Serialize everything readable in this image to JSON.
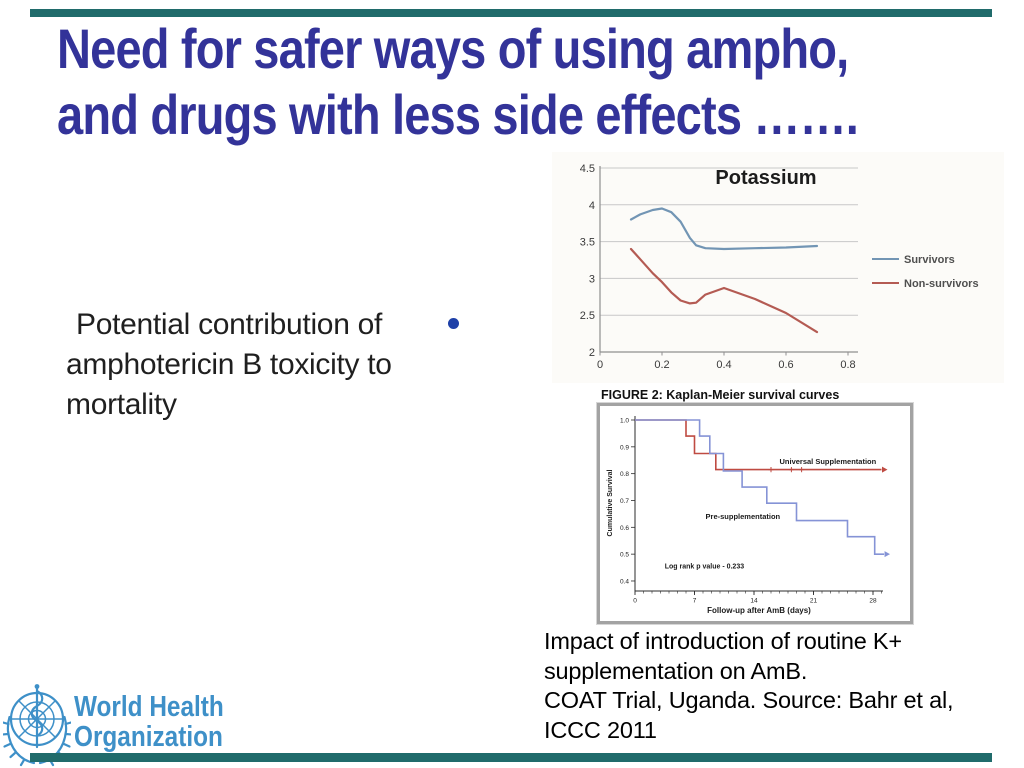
{
  "slide": {
    "title": {
      "line1": "Need for safer ways of using ampho,",
      "line2": "and drugs with less side effects …….",
      "color": "#333399"
    },
    "bullet": {
      "marker": "round-dot",
      "marker_color": "#1e40a8",
      "line1": "Potential contribution of",
      "line2": "amphotericin B toxicity to",
      "line3": "mortality"
    },
    "caption": {
      "line1": "Impact of introduction of routine K+",
      "line2": "supplementation on AmB.",
      "line3": "COAT Trial, Uganda. Source: Bahr et al,",
      "line4": "ICCC 2011"
    },
    "logo": {
      "line1": "World Health",
      "line2": "Organization",
      "color": "#3e90c8"
    },
    "accent_bar_color": "#206b6b"
  },
  "chart_data": [
    {
      "type": "line",
      "title": "Potassium",
      "xlabel": "",
      "ylabel": "",
      "x": [
        0.1,
        0.13,
        0.17,
        0.2,
        0.23,
        0.26,
        0.29,
        0.31,
        0.34,
        0.4,
        0.5,
        0.6,
        0.7
      ],
      "series": [
        {
          "name": "Survivors",
          "color": "#7295b4",
          "values": [
            3.8,
            3.87,
            3.93,
            3.95,
            3.9,
            3.77,
            3.55,
            3.45,
            3.41,
            3.4,
            3.41,
            3.42,
            3.44
          ]
        },
        {
          "name": "Non-survivors",
          "color": "#b45b53",
          "values": [
            3.4,
            3.26,
            3.07,
            2.95,
            2.81,
            2.7,
            2.66,
            2.67,
            2.78,
            2.87,
            2.72,
            2.53,
            2.27
          ]
        }
      ],
      "xlim": [
        0,
        0.8
      ],
      "ylim": [
        2,
        4.5
      ],
      "xticks": [
        0,
        0.2,
        0.4,
        0.6,
        0.8
      ],
      "yticks": [
        4.5,
        4,
        3.5,
        3,
        2.5,
        2
      ],
      "grid": true,
      "legend_position": "right"
    },
    {
      "type": "line",
      "subtype": "kaplan-meier-step",
      "title": "FIGURE 2: Kaplan-Meier survival curves",
      "xlabel": "Follow-up after AmB (days)",
      "ylabel": "Cumulative Survival",
      "xlim": [
        0,
        30
      ],
      "ylim": [
        0.38,
        1.02
      ],
      "xticks": [
        0,
        7,
        14,
        21,
        28
      ],
      "yticks": [
        1.0,
        0.9,
        0.8,
        0.7,
        0.6,
        0.5,
        0.4
      ],
      "series": [
        {
          "name": "Universal Supplementation",
          "color": "#bf4b42",
          "points": [
            [
              0,
              1.0
            ],
            [
              6,
              1.0
            ],
            [
              6,
              0.94
            ],
            [
              7,
              0.94
            ],
            [
              7,
              0.875
            ],
            [
              9.5,
              0.875
            ],
            [
              9.5,
              0.815
            ],
            [
              29,
              0.815
            ]
          ],
          "censor_marks": [
            [
              16,
              0.815
            ],
            [
              18.4,
              0.815
            ],
            [
              19.6,
              0.815
            ]
          ],
          "arrow_end": true
        },
        {
          "name": "Pre-supplementation",
          "color": "#8593d6",
          "points": [
            [
              0,
              1.0
            ],
            [
              7.6,
              1.0
            ],
            [
              7.6,
              0.94
            ],
            [
              8.8,
              0.94
            ],
            [
              8.8,
              0.875
            ],
            [
              10.4,
              0.875
            ],
            [
              10.4,
              0.81
            ],
            [
              12.6,
              0.81
            ],
            [
              12.6,
              0.75
            ],
            [
              15.5,
              0.75
            ],
            [
              15.5,
              0.69
            ],
            [
              19,
              0.69
            ],
            [
              19,
              0.625
            ],
            [
              25,
              0.625
            ],
            [
              25,
              0.565
            ],
            [
              28.2,
              0.565
            ],
            [
              28.2,
              0.5
            ],
            [
              29.3,
              0.5
            ]
          ],
          "censor_marks": [],
          "arrow_end": true
        }
      ],
      "annotations": [
        {
          "text": "Universal Supplementation",
          "x": 17,
          "y": 0.845,
          "size": 7.5
        },
        {
          "text": "Pre-supplementation",
          "x": 8.3,
          "y": 0.64,
          "size": 7.5
        },
        {
          "text": "Log rank p value - 0.233",
          "x": 3.5,
          "y": 0.455,
          "size": 7
        }
      ],
      "grid": false,
      "legend_position": "none"
    }
  ]
}
